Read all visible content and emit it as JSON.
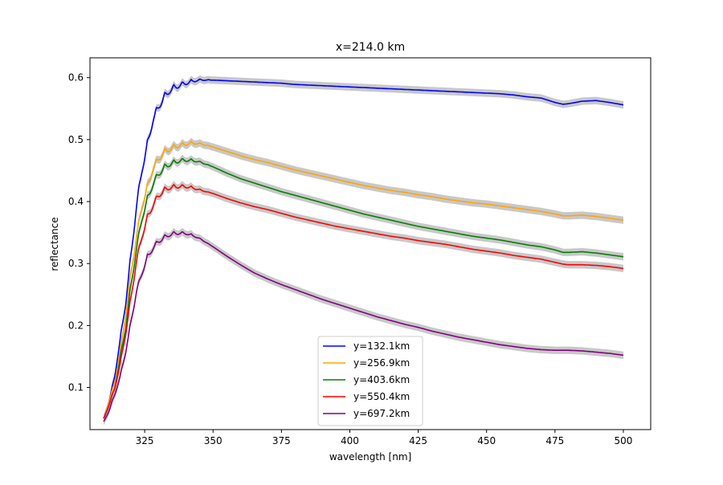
{
  "chart_data": {
    "type": "line",
    "title": "x=214.0 km",
    "xlabel": "wavelength [nm]",
    "ylabel": "reflectance",
    "xlim": [
      305,
      510
    ],
    "ylim": [
      0.032,
      0.632
    ],
    "x_ticks": [
      325,
      350,
      375,
      400,
      425,
      450,
      475,
      500
    ],
    "x_tick_labels": [
      "325",
      "350",
      "375",
      "400",
      "425",
      "450",
      "475",
      "500"
    ],
    "y_ticks": [
      0.1,
      0.2,
      0.3,
      0.4,
      0.5,
      0.6
    ],
    "y_tick_labels": [
      "0.1",
      "0.2",
      "0.3",
      "0.4",
      "0.5",
      "0.6"
    ],
    "grid": false,
    "legend_position": "lower center",
    "uncertainty_band_color": "#c8c8c8",
    "series": [
      {
        "name": "y=132.1km",
        "color": "#0000ff",
        "x": [
          310,
          312,
          314,
          316,
          318,
          320,
          322,
          324,
          326,
          328,
          330,
          332,
          334,
          336,
          338,
          340,
          342,
          344,
          346,
          348,
          350,
          355,
          360,
          365,
          370,
          375,
          380,
          385,
          390,
          395,
          400,
          405,
          410,
          415,
          420,
          425,
          430,
          435,
          440,
          445,
          450,
          455,
          460,
          465,
          470,
          475,
          478,
          480,
          485,
          490,
          495,
          500
        ],
        "y": [
          0.05,
          0.08,
          0.12,
          0.18,
          0.24,
          0.32,
          0.4,
          0.46,
          0.5,
          0.54,
          0.56,
          0.575,
          0.585,
          0.59,
          0.593,
          0.595,
          0.597,
          0.598,
          0.598,
          0.597,
          0.596,
          0.595,
          0.594,
          0.593,
          0.592,
          0.591,
          0.589,
          0.588,
          0.587,
          0.586,
          0.585,
          0.584,
          0.583,
          0.582,
          0.581,
          0.58,
          0.579,
          0.578,
          0.577,
          0.576,
          0.575,
          0.574,
          0.572,
          0.569,
          0.567,
          0.56,
          0.557,
          0.558,
          0.562,
          0.563,
          0.56,
          0.556
        ]
      },
      {
        "name": "y=256.9km",
        "color": "#ffa500",
        "x": [
          310,
          312,
          314,
          316,
          318,
          320,
          322,
          324,
          326,
          328,
          330,
          332,
          334,
          336,
          338,
          340,
          342,
          344,
          346,
          348,
          350,
          355,
          360,
          365,
          370,
          375,
          380,
          385,
          390,
          395,
          400,
          405,
          410,
          415,
          420,
          425,
          430,
          435,
          440,
          445,
          450,
          455,
          460,
          465,
          470,
          475,
          478,
          480,
          485,
          490,
          495,
          500
        ],
        "y": [
          0.05,
          0.08,
          0.11,
          0.16,
          0.22,
          0.29,
          0.35,
          0.4,
          0.43,
          0.46,
          0.475,
          0.485,
          0.49,
          0.493,
          0.495,
          0.496,
          0.497,
          0.496,
          0.494,
          0.491,
          0.488,
          0.481,
          0.474,
          0.468,
          0.463,
          0.457,
          0.451,
          0.446,
          0.441,
          0.436,
          0.431,
          0.426,
          0.422,
          0.418,
          0.415,
          0.411,
          0.408,
          0.404,
          0.401,
          0.398,
          0.396,
          0.393,
          0.39,
          0.387,
          0.384,
          0.38,
          0.377,
          0.377,
          0.378,
          0.376,
          0.373,
          0.37
        ]
      },
      {
        "name": "y=403.6km",
        "color": "#008000",
        "x": [
          310,
          312,
          314,
          316,
          318,
          320,
          322,
          324,
          326,
          328,
          330,
          332,
          334,
          336,
          338,
          340,
          342,
          344,
          346,
          348,
          350,
          355,
          360,
          365,
          370,
          375,
          380,
          385,
          390,
          395,
          400,
          405,
          410,
          415,
          420,
          425,
          430,
          435,
          440,
          445,
          450,
          455,
          460,
          465,
          470,
          475,
          478,
          480,
          485,
          490,
          495,
          500
        ],
        "y": [
          0.05,
          0.075,
          0.1,
          0.15,
          0.2,
          0.27,
          0.33,
          0.38,
          0.41,
          0.435,
          0.45,
          0.46,
          0.465,
          0.468,
          0.47,
          0.47,
          0.469,
          0.467,
          0.464,
          0.46,
          0.456,
          0.446,
          0.437,
          0.43,
          0.423,
          0.416,
          0.41,
          0.404,
          0.398,
          0.392,
          0.386,
          0.38,
          0.375,
          0.37,
          0.365,
          0.36,
          0.356,
          0.352,
          0.348,
          0.344,
          0.341,
          0.338,
          0.334,
          0.33,
          0.327,
          0.322,
          0.318,
          0.318,
          0.319,
          0.317,
          0.314,
          0.311
        ]
      },
      {
        "name": "y=550.4km",
        "color": "#ff0000",
        "x": [
          310,
          312,
          314,
          316,
          318,
          320,
          322,
          324,
          326,
          328,
          330,
          332,
          334,
          336,
          338,
          340,
          342,
          344,
          346,
          348,
          350,
          355,
          360,
          365,
          370,
          375,
          380,
          385,
          390,
          395,
          400,
          405,
          410,
          415,
          420,
          425,
          430,
          435,
          440,
          445,
          450,
          455,
          460,
          465,
          470,
          475,
          478,
          480,
          485,
          490,
          495,
          500
        ],
        "y": [
          0.05,
          0.075,
          0.1,
          0.14,
          0.19,
          0.25,
          0.31,
          0.35,
          0.38,
          0.4,
          0.415,
          0.423,
          0.427,
          0.428,
          0.428,
          0.427,
          0.425,
          0.422,
          0.419,
          0.416,
          0.413,
          0.405,
          0.398,
          0.392,
          0.387,
          0.381,
          0.375,
          0.37,
          0.365,
          0.36,
          0.356,
          0.352,
          0.348,
          0.344,
          0.341,
          0.337,
          0.334,
          0.331,
          0.327,
          0.323,
          0.32,
          0.317,
          0.313,
          0.31,
          0.307,
          0.302,
          0.299,
          0.298,
          0.298,
          0.297,
          0.295,
          0.292
        ]
      },
      {
        "name": "y=697.2km",
        "color": "#800080",
        "x": [
          310,
          312,
          314,
          316,
          318,
          320,
          322,
          324,
          326,
          328,
          330,
          332,
          334,
          336,
          338,
          340,
          342,
          344,
          346,
          348,
          350,
          355,
          360,
          365,
          370,
          375,
          380,
          385,
          390,
          395,
          400,
          405,
          410,
          415,
          420,
          425,
          430,
          435,
          440,
          445,
          450,
          455,
          460,
          465,
          470,
          475,
          478,
          480,
          485,
          490,
          495,
          500
        ],
        "y": [
          0.045,
          0.065,
          0.09,
          0.12,
          0.16,
          0.21,
          0.26,
          0.29,
          0.315,
          0.33,
          0.34,
          0.346,
          0.35,
          0.352,
          0.352,
          0.351,
          0.348,
          0.344,
          0.339,
          0.333,
          0.327,
          0.312,
          0.298,
          0.285,
          0.275,
          0.266,
          0.258,
          0.25,
          0.242,
          0.235,
          0.228,
          0.221,
          0.214,
          0.208,
          0.202,
          0.197,
          0.191,
          0.186,
          0.181,
          0.177,
          0.173,
          0.169,
          0.166,
          0.163,
          0.161,
          0.16,
          0.16,
          0.16,
          0.159,
          0.157,
          0.155,
          0.152
        ]
      }
    ]
  }
}
